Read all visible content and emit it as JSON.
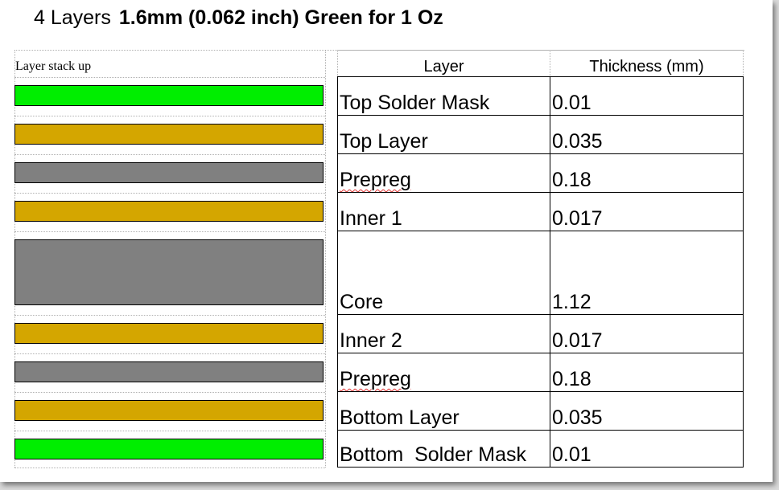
{
  "title": {
    "lead": "4 Layers",
    "bold": "1.6mm (0.062 inch) Green for 1 Oz"
  },
  "stack_label": "Layer stack up",
  "colors": {
    "solder_mask": "#00ee00",
    "copper": "#d4a600",
    "dielectric": "#808080"
  },
  "table": {
    "headers": [
      "Layer",
      "Thickness (mm)"
    ],
    "rows": [
      {
        "layer": "Top Solder Mask",
        "thickness": "0.01"
      },
      {
        "layer": "Top Layer",
        "thickness": "0.035"
      },
      {
        "layer": "Prepreg",
        "thickness": "0.18"
      },
      {
        "layer": "Inner 1",
        "thickness": "0.017"
      },
      {
        "layer": "Core",
        "thickness": "1.12"
      },
      {
        "layer": "Inner 2",
        "thickness": "0.017"
      },
      {
        "layer": "Prepreg",
        "thickness": "0.18"
      },
      {
        "layer": "Bottom Layer",
        "thickness": "0.035"
      },
      {
        "layer": "Bottom  Solder Mask",
        "thickness": "0.01"
      }
    ]
  }
}
